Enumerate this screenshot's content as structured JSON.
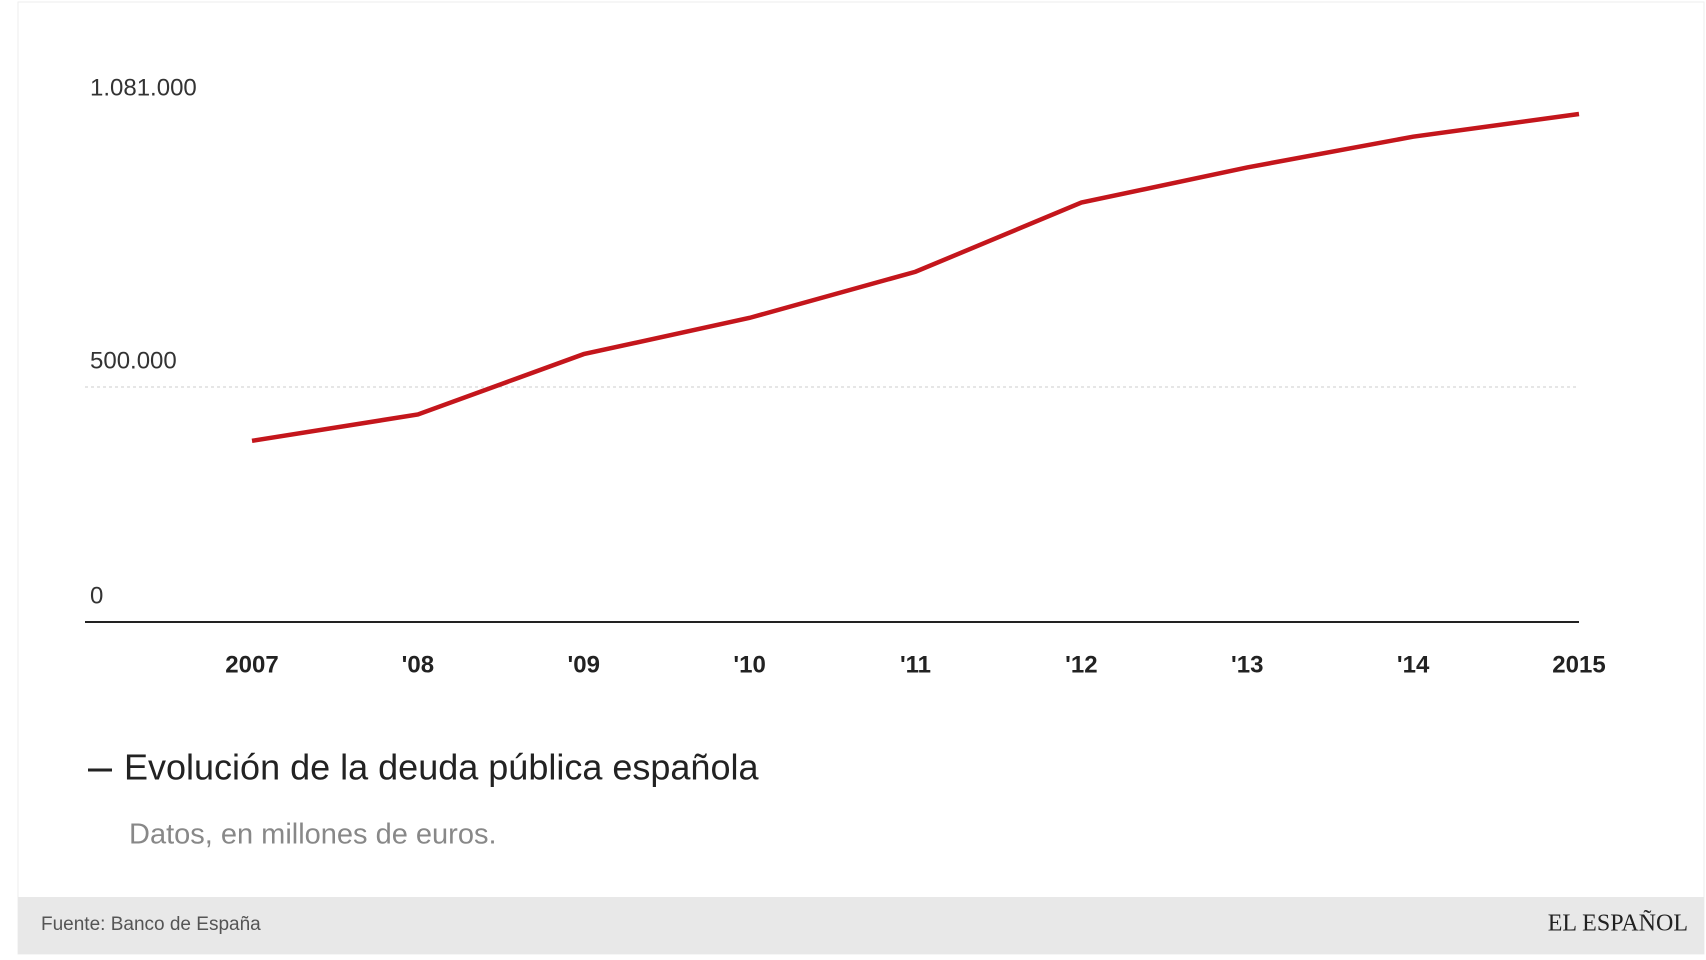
{
  "chart_data": {
    "type": "line",
    "categories": [
      "2007",
      "'08",
      "'09",
      "'10",
      "'11",
      "'12",
      "'13",
      "'14",
      "2015"
    ],
    "series": [
      {
        "name": "Evolución de la deuda pública española",
        "color": "#c4161c",
        "values": [
          385500,
          441600,
          570100,
          647200,
          745300,
          892500,
          967300,
          1032700,
          1081000
        ]
      }
    ],
    "subtitle": "Datos, en millones de euros.",
    "source": "Fuente: Banco de España",
    "brand": "EL ESPAÑOL",
    "ylim": [
      0,
      1081000
    ],
    "yticks": [
      0,
      {
        "value": 500000,
        "label": "500.000"
      },
      {
        "value": 1081000,
        "label": "1.081.000"
      }
    ],
    "grid": true
  }
}
